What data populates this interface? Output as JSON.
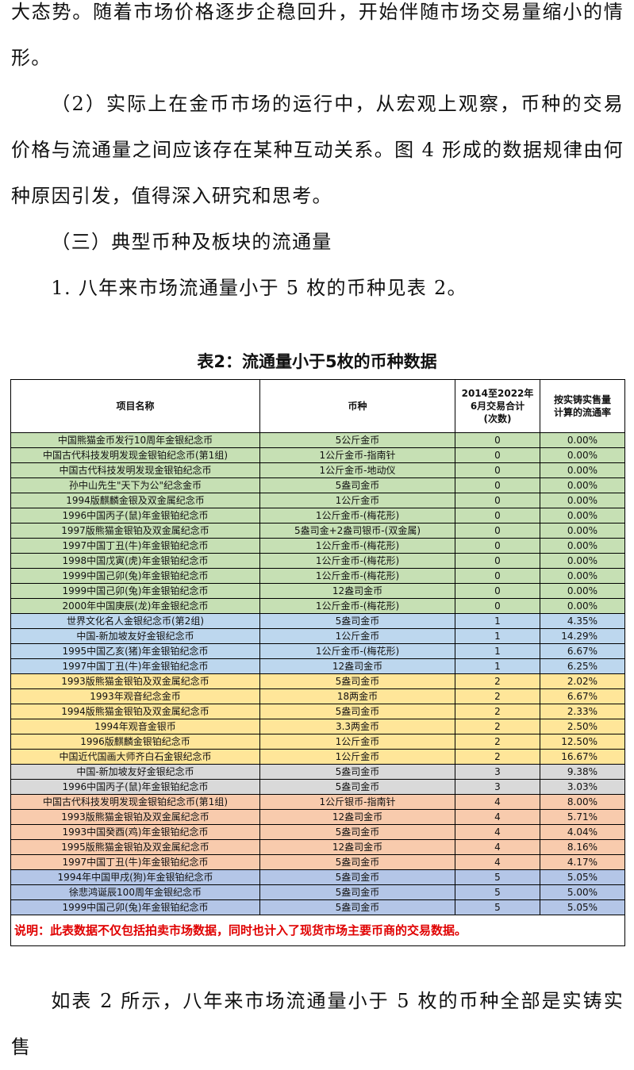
{
  "paragraphs": [
    "大态势。随着市场价格逐步企稳回升，开始伴随市场交易量缩小的情形。",
    "（2）实际上在金币市场的运行中，从宏观上观察，币种的交易价格与流通量之间应该存在某种互动关系。图 4 形成的数据规律由何种原因引发，值得深入研究和思考。",
    "（三）典型币种及板块的流通量",
    "1. 八年来市场流通量小于 5 枚的币种见表 2。"
  ],
  "table": {
    "title": "表2：流通量小于5枚的币种数据",
    "headers": [
      "项目名称",
      "币种",
      "2014至2022年\n6月交易合计\n(次数)",
      "按实铸实售量\n计算的流通率"
    ],
    "rows": [
      {
        "name": "中国熊猫金币发行10周年金银纪念币",
        "coin": "5公斤金币",
        "count": 0,
        "rate": "0.00%",
        "color": "#c6e0b4"
      },
      {
        "name": "中国古代科技发明发现金银铂纪念币(第1组)",
        "coin": "1公斤金币-指南针",
        "count": 0,
        "rate": "0.00%",
        "color": "#c6e0b4"
      },
      {
        "name": "中国古代科技发明发现金银铂纪念币",
        "coin": "1公斤金币-地动仪",
        "count": 0,
        "rate": "0.00%",
        "color": "#c6e0b4"
      },
      {
        "name": "孙中山先生\"天下为公\"纪念金币",
        "coin": "5盎司金币",
        "count": 0,
        "rate": "0.00%",
        "color": "#c6e0b4"
      },
      {
        "name": "1994版麒麟金银及双金属纪念币",
        "coin": "1公斤金币",
        "count": 0,
        "rate": "0.00%",
        "color": "#c6e0b4"
      },
      {
        "name": "1996中国丙子(鼠)年金银铂纪念币",
        "coin": "1公斤金币-(梅花形)",
        "count": 0,
        "rate": "0.00%",
        "color": "#c6e0b4"
      },
      {
        "name": "1997版熊猫金银铂及双金属纪念币",
        "coin": "5盎司金+2盎司银币-(双金属)",
        "count": 0,
        "rate": "0.00%",
        "color": "#c6e0b4"
      },
      {
        "name": "1997中国丁丑(牛)年金银铂纪念币",
        "coin": "1公斤金币-(梅花形)",
        "count": 0,
        "rate": "0.00%",
        "color": "#c6e0b4"
      },
      {
        "name": "1998中国戊寅(虎)年金银铂纪念币",
        "coin": "1公斤金币-(梅花形)",
        "count": 0,
        "rate": "0.00%",
        "color": "#c6e0b4"
      },
      {
        "name": "1999中国己卯(兔)年金银铂纪念币",
        "coin": "1公斤金币-(梅花形)",
        "count": 0,
        "rate": "0.00%",
        "color": "#c6e0b4"
      },
      {
        "name": "1999中国己卯(兔)年金银铂纪念币",
        "coin": "12盎司金币",
        "count": 0,
        "rate": "0.00%",
        "color": "#c6e0b4"
      },
      {
        "name": "2000年中国庚辰(龙)年金银纪念币",
        "coin": "1公斤金币-(梅花形)",
        "count": 0,
        "rate": "0.00%",
        "color": "#c6e0b4"
      },
      {
        "name": "世界文化名人金银纪念币(第2组)",
        "coin": "5盎司金币",
        "count": 1,
        "rate": "4.35%",
        "color": "#bdd7ee"
      },
      {
        "name": "中国-新加坡友好金银纪念币",
        "coin": "1公斤金币",
        "count": 1,
        "rate": "14.29%",
        "color": "#bdd7ee"
      },
      {
        "name": "1995中国乙亥(猪)年金银铂纪念币",
        "coin": "1公斤金币-(梅花形)",
        "count": 1,
        "rate": "6.67%",
        "color": "#bdd7ee"
      },
      {
        "name": "1997中国丁丑(牛)年金银铂纪念币",
        "coin": "12盎司金币",
        "count": 1,
        "rate": "6.25%",
        "color": "#bdd7ee"
      },
      {
        "name": "1993版熊猫金银铂及双金属纪念币",
        "coin": "5盎司金币",
        "count": 2,
        "rate": "2.02%",
        "color": "#ffe699"
      },
      {
        "name": "1993年观音纪念金币",
        "coin": "18两金币",
        "count": 2,
        "rate": "6.67%",
        "color": "#ffe699"
      },
      {
        "name": "1994版熊猫金银铂及双金属纪念币",
        "coin": "5盎司金币",
        "count": 2,
        "rate": "2.33%",
        "color": "#ffe699"
      },
      {
        "name": "1994年观音金银币",
        "coin": "3.3两金币",
        "count": 2,
        "rate": "2.50%",
        "color": "#ffe699"
      },
      {
        "name": "1996版麒麟金银铂纪念币",
        "coin": "1公斤金币",
        "count": 2,
        "rate": "12.50%",
        "color": "#ffe699"
      },
      {
        "name": "中国近代国画大师齐白石金银纪念币",
        "coin": "1公斤金币",
        "count": 2,
        "rate": "16.67%",
        "color": "#ffe699"
      },
      {
        "name": "中国-新加坡友好金银纪念币",
        "coin": "5盎司金币",
        "count": 3,
        "rate": "9.38%",
        "color": "#d9d9d9"
      },
      {
        "name": "1996中国丙子(鼠)年金银铂纪念币",
        "coin": "5盎司金币",
        "count": 3,
        "rate": "3.03%",
        "color": "#d9d9d9"
      },
      {
        "name": "中国古代科技发明发现金银铂纪念币(第1组)",
        "coin": "1公斤银币-指南针",
        "count": 4,
        "rate": "8.00%",
        "color": "#f8cbad"
      },
      {
        "name": "1993版熊猫金银铂及双金属纪念币",
        "coin": "12盎司金币",
        "count": 4,
        "rate": "5.71%",
        "color": "#f8cbad"
      },
      {
        "name": "1993中国癸酉(鸡)年金银铂纪念币",
        "coin": "5盎司金币",
        "count": 4,
        "rate": "4.04%",
        "color": "#f8cbad"
      },
      {
        "name": "1995版熊猫金银铂及双金属纪念币",
        "coin": "12盎司金币",
        "count": 4,
        "rate": "8.16%",
        "color": "#f8cbad"
      },
      {
        "name": "1997中国丁丑(牛)年金银铂纪念币",
        "coin": "5盎司金币",
        "count": 4,
        "rate": "4.17%",
        "color": "#f8cbad"
      },
      {
        "name": "1994年中国甲戌(狗)年金银铂纪念币",
        "coin": "5盎司金币",
        "count": 5,
        "rate": "5.05%",
        "color": "#b4c6e7"
      },
      {
        "name": "徐悲鸿诞辰100周年金银纪念币",
        "coin": "5盎司金币",
        "count": 5,
        "rate": "5.00%",
        "color": "#b4c6e7"
      },
      {
        "name": "1999中国己卯(兔)年金银铂纪念币",
        "coin": "5盎司金币",
        "count": 5,
        "rate": "5.05%",
        "color": "#b4c6e7"
      }
    ],
    "note": "说明：此表数据不仅包括拍卖市场数据，同时也计入了现货市场主要币商的交易数据。"
  },
  "closing_paragraph": "如表 2 所示，八年来市场流通量小于 5 枚的币种全部是实铸实售"
}
